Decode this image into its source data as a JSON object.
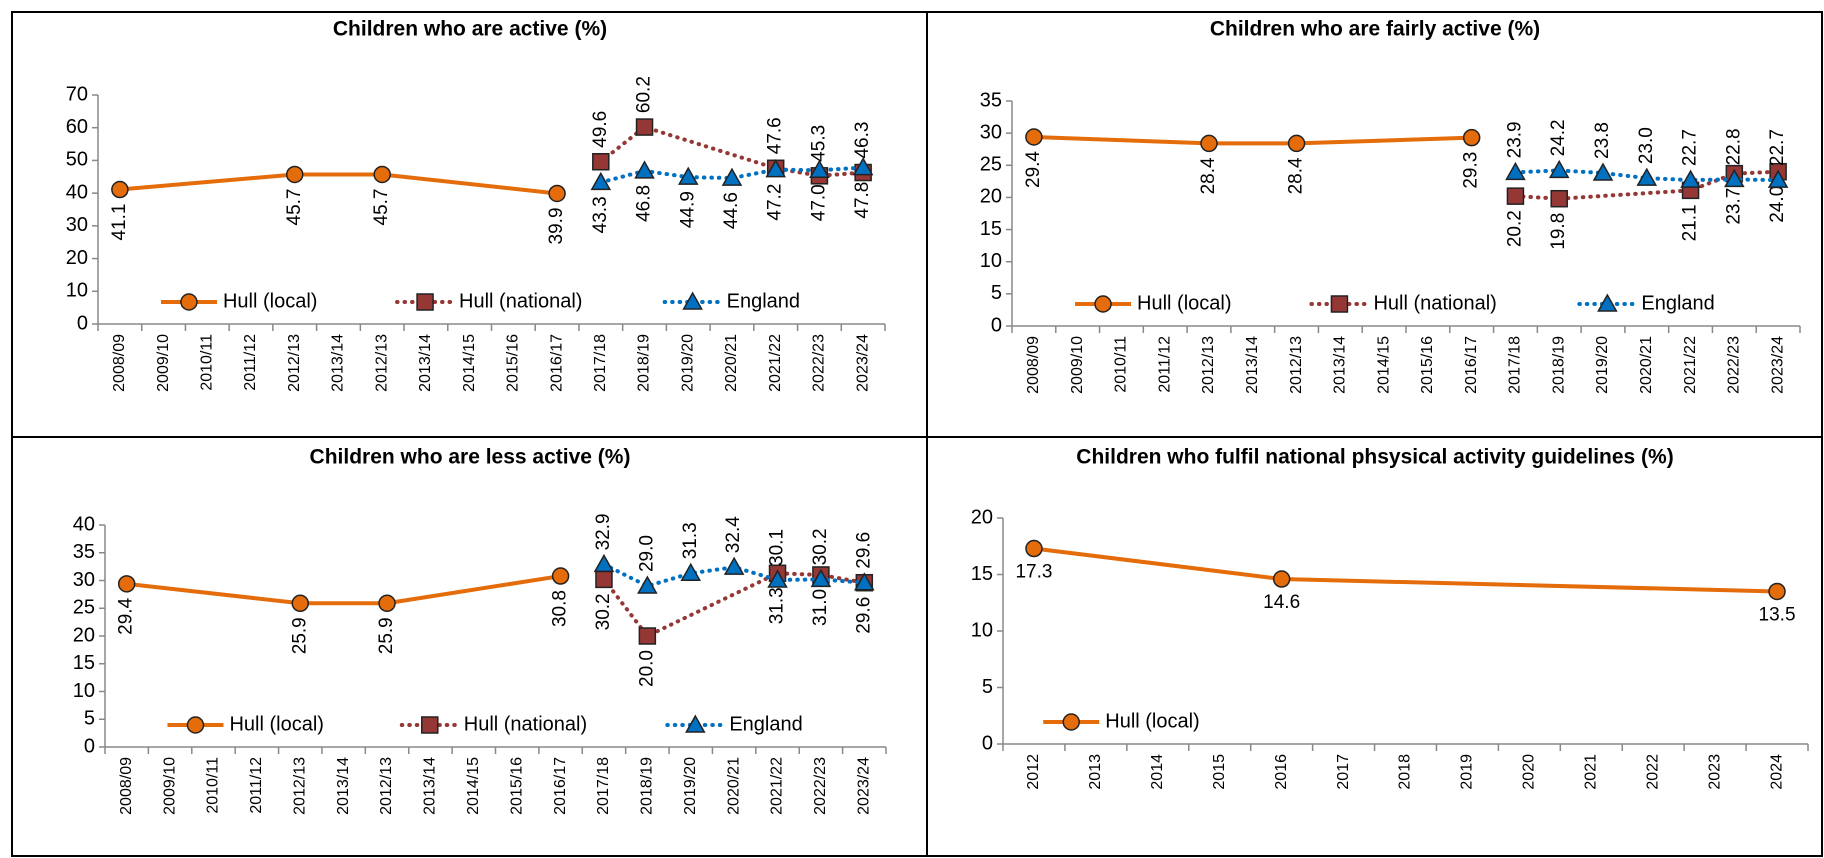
{
  "chart_data": [
    {
      "type": "line",
      "title": "Children who are active (%)",
      "categories": [
        "2008/09",
        "2009/10",
        "2010/11",
        "2011/12",
        "2012/13",
        "2013/14",
        "2012/13",
        "2013/14",
        "2014/15",
        "2015/16",
        "2016/17",
        "2017/18",
        "2018/19",
        "2019/20",
        "2020/21",
        "2021/22",
        "2022/23",
        "2023/24"
      ],
      "series": [
        {
          "name": "Hull (local)",
          "color": "#E46C0A",
          "line_style": "solid",
          "marker": "circle",
          "label_position": "below",
          "values": [
            41.1,
            null,
            null,
            null,
            45.7,
            null,
            45.7,
            null,
            null,
            null,
            39.9,
            null,
            null,
            null,
            null,
            null,
            null,
            null
          ],
          "value_labels": [
            "41.1",
            null,
            null,
            null,
            "45.7",
            null,
            "45.7",
            null,
            null,
            null,
            "39.9",
            null,
            null,
            null,
            null,
            null,
            null,
            null
          ]
        },
        {
          "name": "Hull (national)",
          "color": "#953735",
          "line_style": "dotted",
          "marker": "square",
          "label_position": "above",
          "values": [
            null,
            null,
            null,
            null,
            null,
            null,
            null,
            null,
            null,
            null,
            null,
            49.6,
            60.2,
            null,
            null,
            47.6,
            45.3,
            46.3
          ],
          "value_labels": [
            null,
            null,
            null,
            null,
            null,
            null,
            null,
            null,
            null,
            null,
            null,
            "49.6",
            "60.2",
            null,
            null,
            "47.6",
            "45.3",
            "46.3"
          ]
        },
        {
          "name": "England",
          "color": "#0070C0",
          "line_style": "dotted",
          "marker": "triangle",
          "label_position": "below",
          "values": [
            null,
            null,
            null,
            null,
            null,
            null,
            null,
            null,
            null,
            null,
            null,
            43.3,
            46.8,
            44.9,
            44.6,
            47.2,
            47.0,
            47.8
          ],
          "value_labels": [
            null,
            null,
            null,
            null,
            null,
            null,
            null,
            null,
            null,
            null,
            null,
            "43.3",
            "46.8",
            "44.9",
            "44.6",
            "47.2",
            "47.0",
            "47.8"
          ]
        }
      ],
      "ylim": [
        0,
        70
      ],
      "yticks": [
        0,
        10,
        20,
        30,
        40,
        50,
        60,
        70
      ],
      "legend": "bottom",
      "span_gaps": true
    },
    {
      "type": "line",
      "title": "Children who are fairly active (%)",
      "categories": [
        "2008/09",
        "2009/10",
        "2010/11",
        "2011/12",
        "2012/13",
        "2013/14",
        "2012/13",
        "2013/14",
        "2014/15",
        "2015/16",
        "2016/17",
        "2017/18",
        "2018/19",
        "2019/20",
        "2020/21",
        "2021/22",
        "2022/23",
        "2023/24"
      ],
      "series": [
        {
          "name": "Hull (local)",
          "color": "#E46C0A",
          "line_style": "solid",
          "marker": "circle",
          "label_position": "below",
          "values": [
            29.4,
            null,
            null,
            null,
            28.4,
            null,
            28.4,
            null,
            null,
            null,
            29.3,
            null,
            null,
            null,
            null,
            null,
            null,
            null
          ],
          "value_labels": [
            "29.4",
            null,
            null,
            null,
            "28.4",
            null,
            "28.4",
            null,
            null,
            null,
            "29.3",
            null,
            null,
            null,
            null,
            null,
            null,
            null
          ]
        },
        {
          "name": "Hull (national)",
          "color": "#953735",
          "line_style": "dotted",
          "marker": "square",
          "label_position": "below",
          "values": [
            null,
            null,
            null,
            null,
            null,
            null,
            null,
            null,
            null,
            null,
            null,
            20.2,
            19.8,
            null,
            null,
            21.1,
            23.7,
            24.0
          ],
          "value_labels": [
            null,
            null,
            null,
            null,
            null,
            null,
            null,
            null,
            null,
            null,
            null,
            "20.2",
            "19.8",
            null,
            null,
            "21.1",
            "23.7",
            "24.0"
          ]
        },
        {
          "name": "England",
          "color": "#0070C0",
          "line_style": "dotted",
          "marker": "triangle",
          "label_position": "above",
          "values": [
            null,
            null,
            null,
            null,
            null,
            null,
            null,
            null,
            null,
            null,
            null,
            23.9,
            24.2,
            23.8,
            23.0,
            22.7,
            22.8,
            22.7
          ],
          "value_labels": [
            null,
            null,
            null,
            null,
            null,
            null,
            null,
            null,
            null,
            null,
            null,
            "23.9",
            "24.2",
            "23.8",
            "23.0",
            "22.7",
            "22.8",
            "22.7"
          ]
        }
      ],
      "ylim": [
        0,
        35
      ],
      "yticks": [
        0,
        5,
        10,
        15,
        20,
        25,
        30,
        35
      ],
      "legend": "bottom",
      "span_gaps": true
    },
    {
      "type": "line",
      "title": "Children who are less active (%)",
      "categories": [
        "2008/09",
        "2009/10",
        "2010/11",
        "2011/12",
        "2012/13",
        "2013/14",
        "2012/13",
        "2013/14",
        "2014/15",
        "2015/16",
        "2016/17",
        "2017/18",
        "2018/19",
        "2019/20",
        "2020/21",
        "2021/22",
        "2022/23",
        "2023/24"
      ],
      "series": [
        {
          "name": "Hull (local)",
          "color": "#E46C0A",
          "line_style": "solid",
          "marker": "circle",
          "label_position": "below",
          "values": [
            29.4,
            null,
            null,
            null,
            25.9,
            null,
            25.9,
            null,
            null,
            null,
            30.8,
            null,
            null,
            null,
            null,
            null,
            null,
            null
          ],
          "value_labels": [
            "29.4",
            null,
            null,
            null,
            "25.9",
            null,
            "25.9",
            null,
            null,
            null,
            "30.8",
            null,
            null,
            null,
            null,
            null,
            null,
            null
          ]
        },
        {
          "name": "Hull (national)",
          "color": "#953735",
          "line_style": "dotted",
          "marker": "square",
          "label_position": "below",
          "values": [
            null,
            null,
            null,
            null,
            null,
            null,
            null,
            null,
            null,
            null,
            null,
            30.2,
            20.0,
            null,
            null,
            31.3,
            31.0,
            29.6
          ],
          "value_labels": [
            null,
            null,
            null,
            null,
            null,
            null,
            null,
            null,
            null,
            null,
            null,
            "30.2",
            "20.0",
            null,
            null,
            "31.3",
            "31.0",
            "29.6"
          ]
        },
        {
          "name": "England",
          "color": "#0070C0",
          "line_style": "dotted",
          "marker": "triangle",
          "label_position": "above",
          "values": [
            null,
            null,
            null,
            null,
            null,
            null,
            null,
            null,
            null,
            null,
            null,
            32.9,
            29.0,
            31.3,
            32.4,
            30.1,
            30.2,
            29.6
          ],
          "value_labels": [
            null,
            null,
            null,
            null,
            null,
            null,
            null,
            null,
            null,
            null,
            null,
            "32.9",
            "29.0",
            "31.3",
            "32.4",
            "30.1",
            "30.2",
            "29.6"
          ]
        }
      ],
      "ylim": [
        0,
        40
      ],
      "yticks": [
        0,
        5,
        10,
        15,
        20,
        25,
        30,
        35,
        40
      ],
      "legend": "bottom",
      "span_gaps": true
    },
    {
      "type": "line",
      "title": "Children who fulfil national phsysical activity guidelines (%)",
      "categories": [
        "2012",
        "2013",
        "2014",
        "2015",
        "2016",
        "2017",
        "2018",
        "2019",
        "2020",
        "2021",
        "2022",
        "2023",
        "2024"
      ],
      "series": [
        {
          "name": "Hull (local)",
          "color": "#E46C0A",
          "line_style": "solid",
          "marker": "circle",
          "label_position": "below-flat",
          "values": [
            17.3,
            null,
            null,
            null,
            14.6,
            null,
            null,
            null,
            null,
            null,
            null,
            null,
            13.5
          ],
          "value_labels": [
            "17.3",
            null,
            null,
            null,
            "14.6",
            null,
            null,
            null,
            null,
            null,
            null,
            null,
            "13.5"
          ]
        }
      ],
      "ylim": [
        0,
        20
      ],
      "yticks": [
        0,
        5,
        10,
        15,
        20
      ],
      "legend": "bottom",
      "span_gaps": true
    }
  ]
}
